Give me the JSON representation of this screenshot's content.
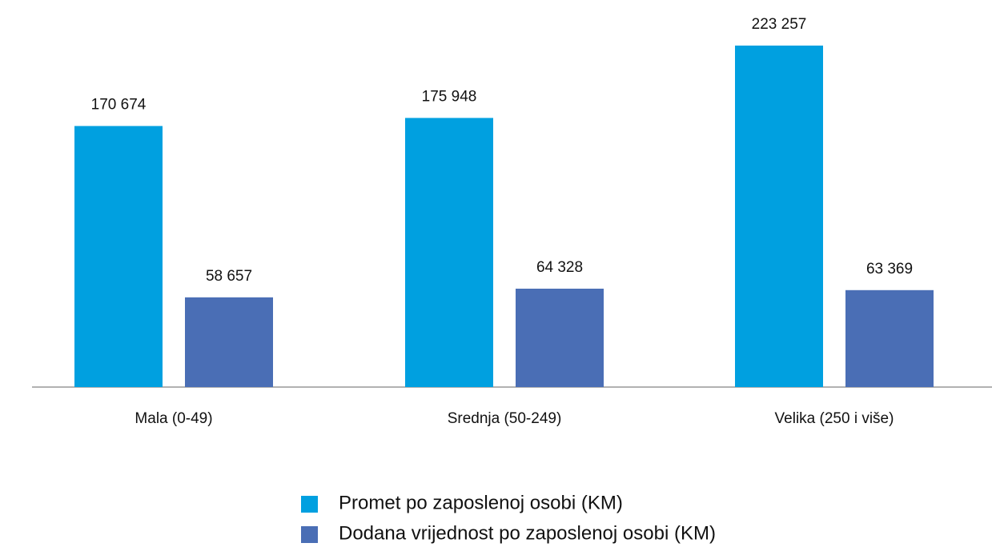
{
  "chart_data": {
    "type": "bar",
    "categories": [
      "Mala (0-49)",
      "Srednja (50-249)",
      "Velika (250 i više)"
    ],
    "series": [
      {
        "name": "Promet po zaposlenoj osobi (KM)",
        "color": "#00a0e0",
        "values": [
          170674,
          175948,
          223257
        ],
        "value_labels": [
          "170 674",
          "175 948",
          "223 257"
        ]
      },
      {
        "name": "Dodana vrijednost po zaposlenoj osobi (KM)",
        "color": "#4a6eb5",
        "values": [
          58657,
          64328,
          63369
        ],
        "value_labels": [
          "58 657",
          "64 328",
          "63 369"
        ]
      }
    ]
  }
}
